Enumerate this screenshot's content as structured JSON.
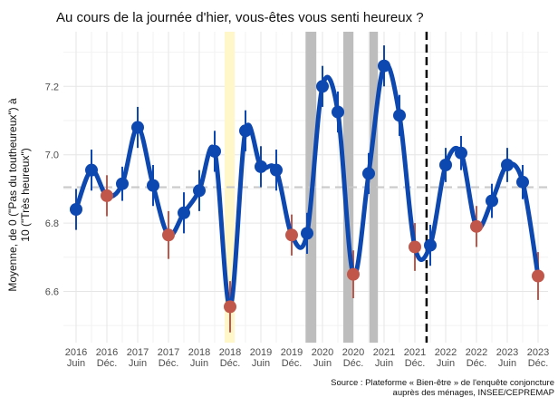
{
  "chart_data": {
    "type": "line",
    "title": "Au cours de la journée d'hier, vous-êtes vous senti heureux ?",
    "y_label": [
      "Moyenne, de 0 (\"Pas du toutheureux\") à",
      "10 (\"Très heureux\")"
    ],
    "source": [
      "Source : Plateforme « Bien-être » de l'enquête conjoncture",
      "auprès des ménages, INSEE/CEPREMAP"
    ],
    "categories": [
      "2016 Juin",
      null,
      "2016 Déc.",
      null,
      "2017 Juin",
      null,
      "2017 Déc.",
      null,
      "2018 Juin",
      null,
      "2018 Déc.",
      null,
      "2019 Juin",
      null,
      "2019 Déc.",
      null,
      "2020 Juin",
      null,
      "2020 Déc.",
      null,
      "2021 Juin",
      null,
      "2021 Déc.",
      null,
      "2022 Juin",
      null,
      "2022 Déc.",
      null,
      "2023 Juin",
      null,
      "2023 Déc."
    ],
    "series": [
      {
        "color": "#0d47b0",
        "values": [
          6.84,
          6.955,
          6.88,
          6.915,
          7.08,
          6.91,
          6.765,
          6.83,
          6.895,
          7.01,
          6.555,
          7.07,
          6.965,
          6.955,
          6.765,
          6.77,
          7.2,
          7.125,
          6.65,
          6.945,
          7.26,
          7.115,
          6.73,
          6.735,
          6.97,
          7.005,
          6.79,
          6.865,
          6.97,
          6.92,
          6.645
        ],
        "errors": [
          0.06,
          0.06,
          0.06,
          0.05,
          0.06,
          0.06,
          0.07,
          0.06,
          0.06,
          0.06,
          0.075,
          0.06,
          0.06,
          0.06,
          0.06,
          0.06,
          0.06,
          0.06,
          0.07,
          0.06,
          0.06,
          0.06,
          0.07,
          0.06,
          0.05,
          0.05,
          0.06,
          0.05,
          0.05,
          0.05,
          0.07
        ],
        "point_colors": [
          "#0d47b0",
          "#0d47b0",
          "#c0574a",
          "#0d47b0",
          "#0d47b0",
          "#0d47b0",
          "#c0574a",
          "#0d47b0",
          "#0d47b0",
          "#0d47b0",
          "#c0574a",
          "#0d47b0",
          "#0d47b0",
          "#0d47b0",
          "#c0574a",
          "#0d47b0",
          "#0d47b0",
          "#0d47b0",
          "#c0574a",
          "#0d47b0",
          "#0d47b0",
          "#0d47b0",
          "#c0574a",
          "#0d47b0",
          "#0d47b0",
          "#0d47b0",
          "#c0574a",
          "#0d47b0",
          "#0d47b0",
          "#0d47b0",
          "#c0574a"
        ]
      }
    ],
    "ylim": [
      6.45,
      7.36
    ],
    "yticks": [
      6.6,
      6.8,
      {
        "value": 7,
        "label": "7.0"
      },
      7.2
    ],
    "minor_yticks": [
      6.5,
      6.7,
      6.9,
      7.1,
      7.3
    ],
    "mean_line": 6.905,
    "shaded_regions": [
      {
        "from": 9.65,
        "to": 10.3,
        "color": "#fff6c9"
      },
      {
        "from": 14.9,
        "to": 15.6,
        "color": "#bdbdbd"
      },
      {
        "from": 17.35,
        "to": 18.0,
        "color": "#bdbdbd"
      },
      {
        "from": 19.05,
        "to": 19.6,
        "color": "#bdbdbd"
      }
    ],
    "vertical_dashed": 22.76,
    "grid": true
  }
}
